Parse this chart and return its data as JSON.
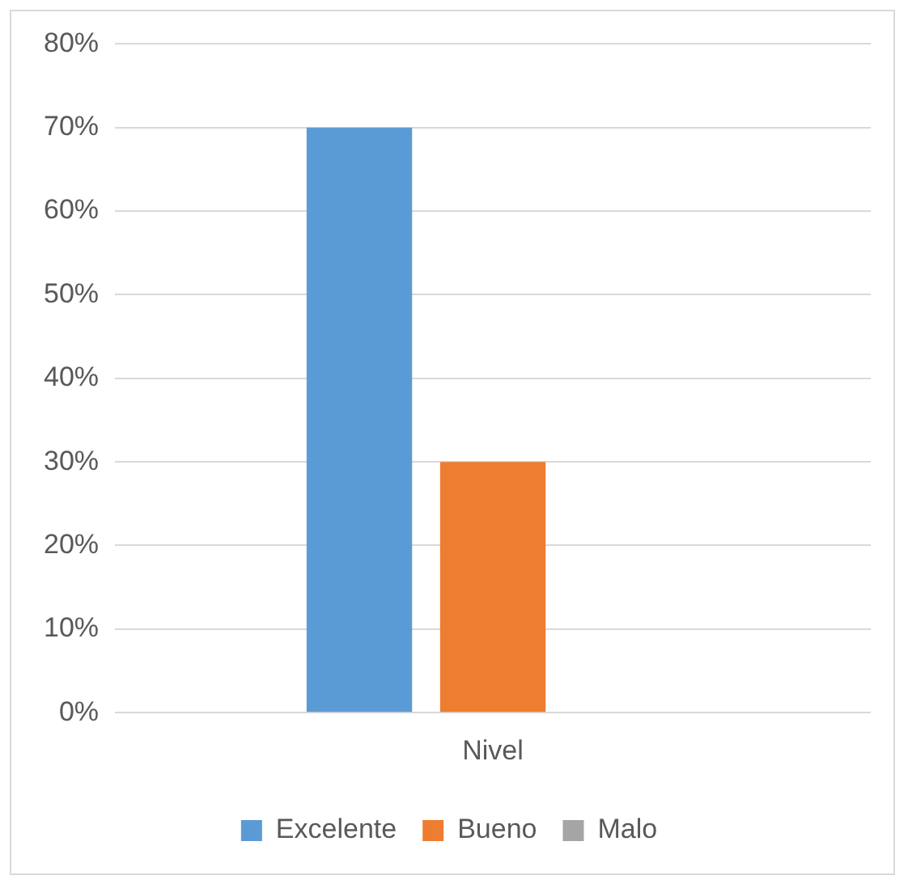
{
  "chart_data": {
    "type": "bar",
    "categories": [
      "Nivel"
    ],
    "series": [
      {
        "name": "Excelente",
        "color": "#5b9bd5",
        "values": [
          70
        ]
      },
      {
        "name": "Bueno",
        "color": "#ed7d31",
        "values": [
          30
        ]
      },
      {
        "name": "Malo",
        "color": "#a5a5a5",
        "values": [
          0
        ]
      }
    ],
    "ylim": [
      0,
      80
    ],
    "yticks": [
      {
        "value": 0,
        "label": "0%"
      },
      {
        "value": 10,
        "label": "10%"
      },
      {
        "value": 20,
        "label": "20%"
      },
      {
        "value": 30,
        "label": "30%"
      },
      {
        "value": 40,
        "label": "40%"
      },
      {
        "value": 50,
        "label": "50%"
      },
      {
        "value": 60,
        "label": "60%"
      },
      {
        "value": 70,
        "label": "70%"
      },
      {
        "value": 80,
        "label": "80%"
      }
    ],
    "grid": "y",
    "legend": "bottom"
  }
}
